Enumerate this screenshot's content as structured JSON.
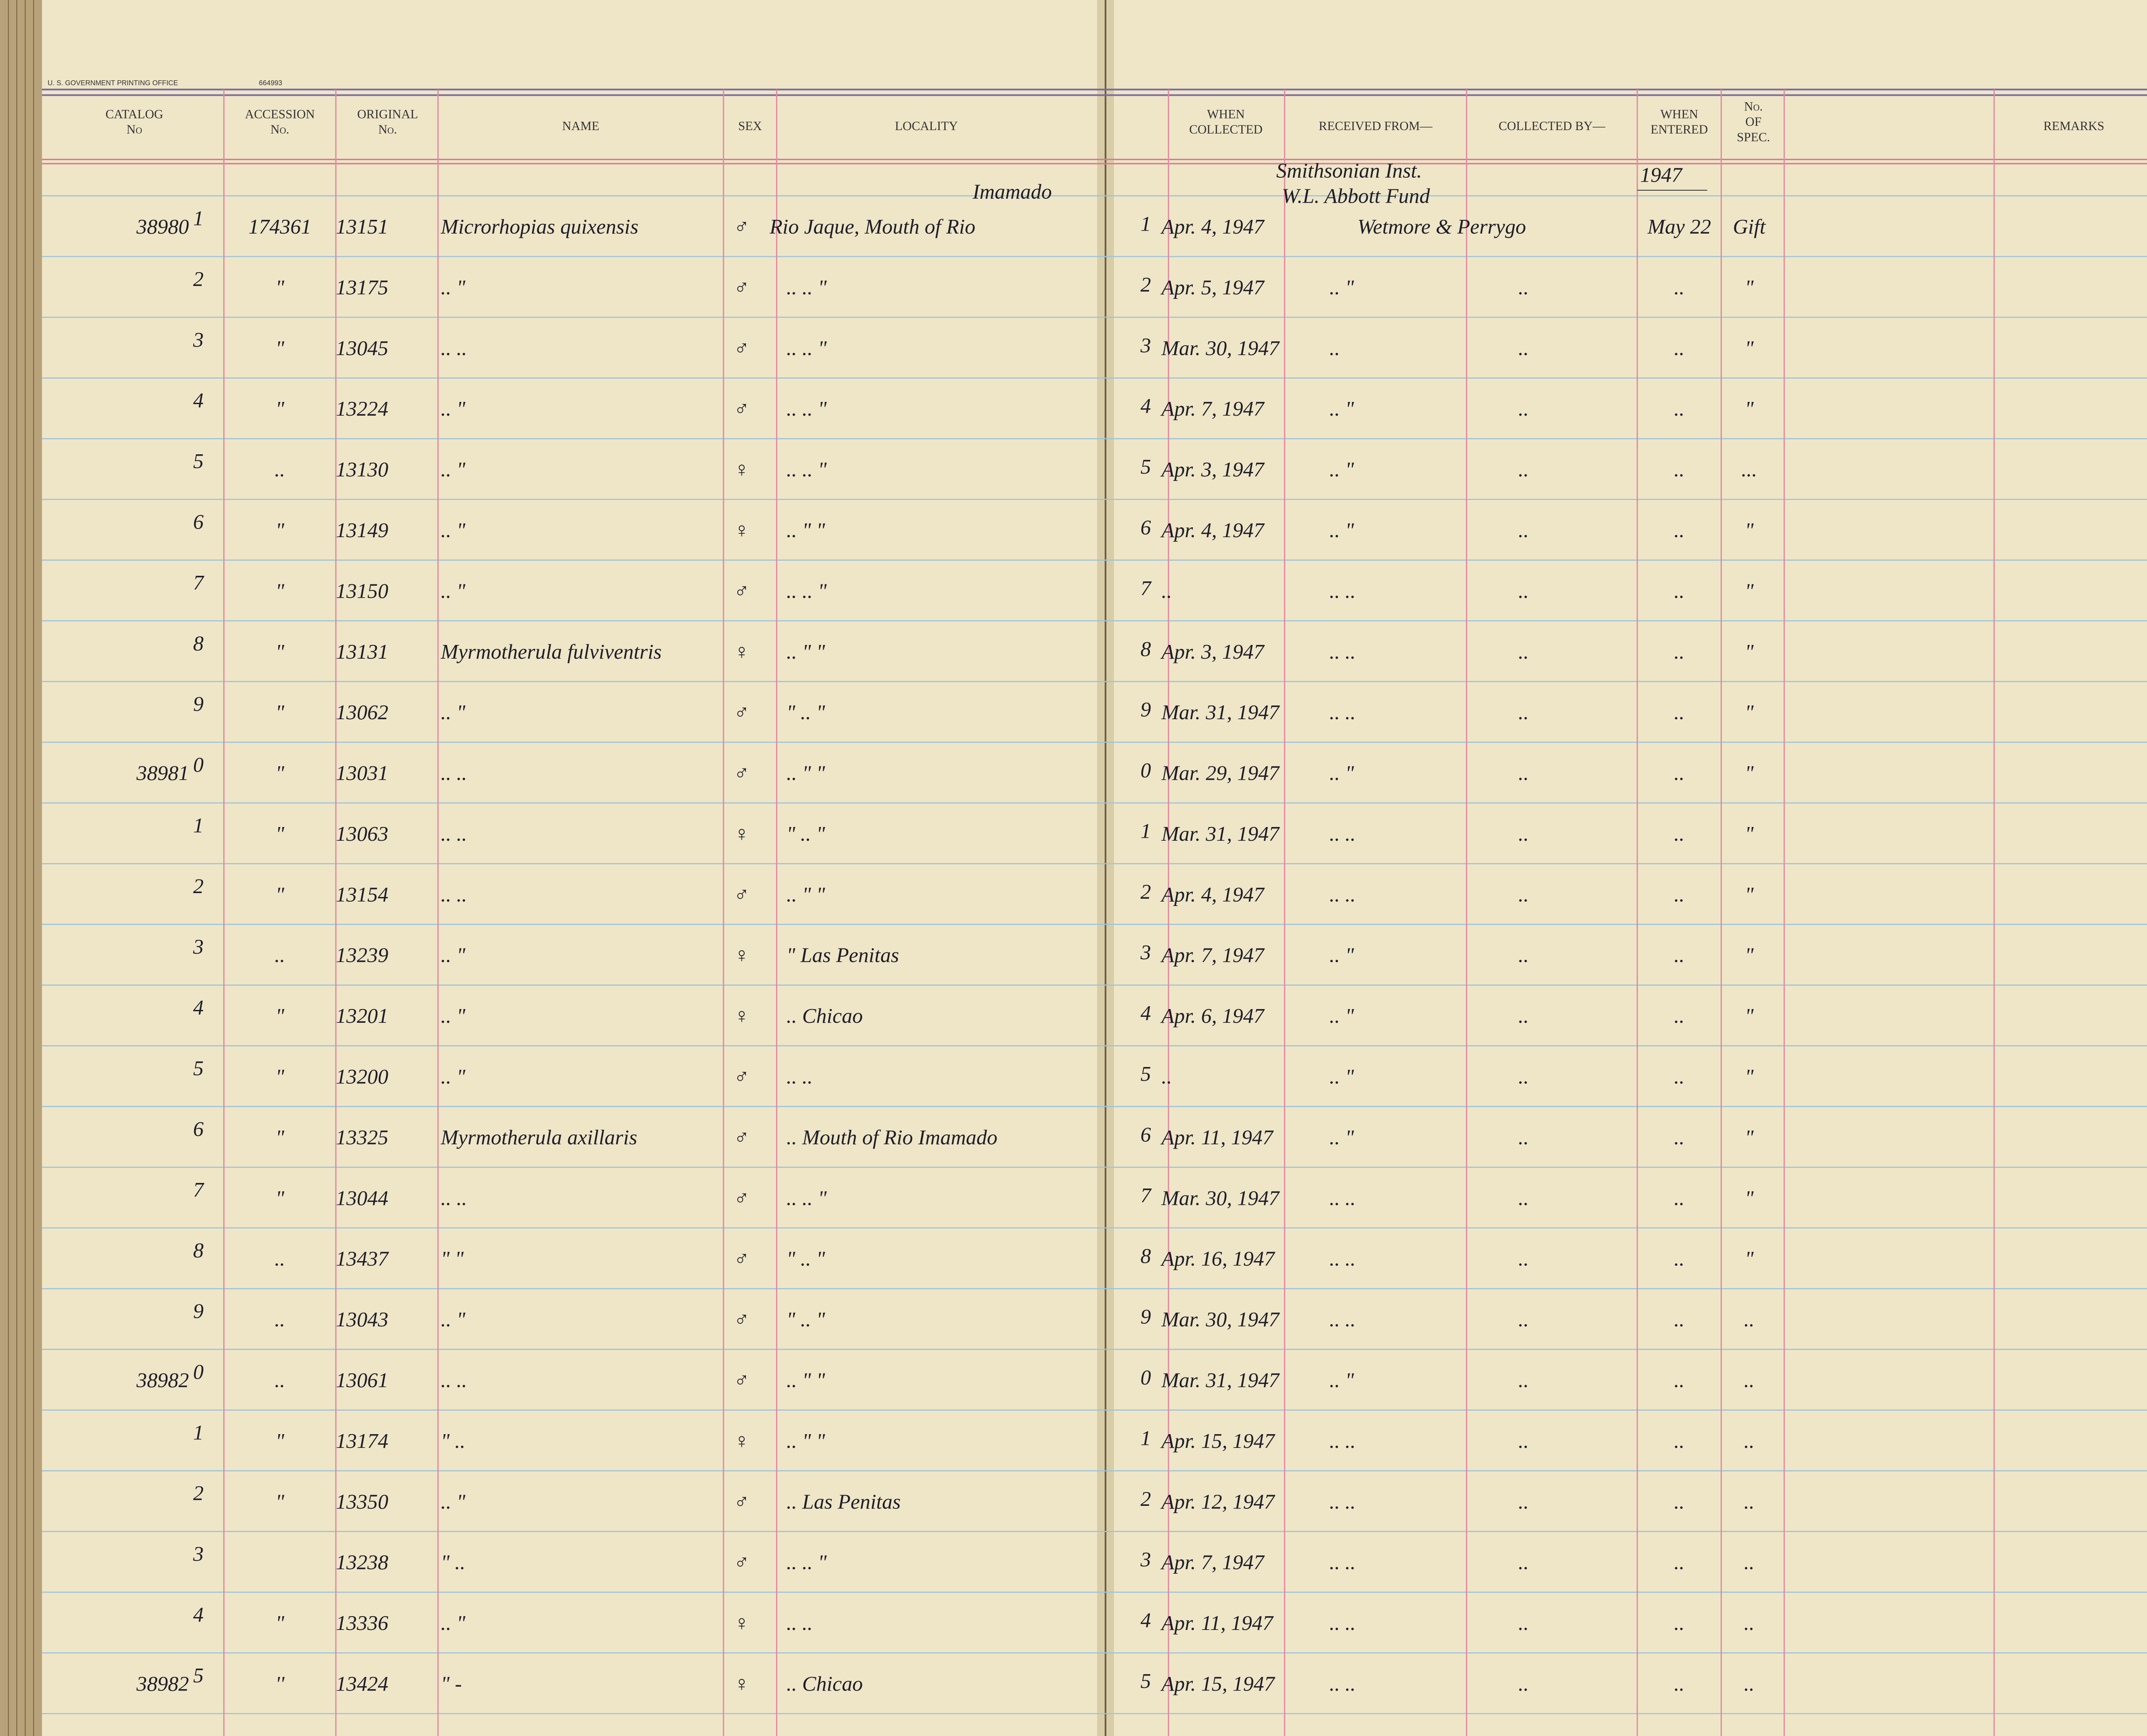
{
  "header": {
    "printer": "U. S. GOVERNMENT PRINTING OFFICE",
    "printer_no": "664993",
    "columns": {
      "catalog": [
        "CATALOG",
        "No"
      ],
      "accession": [
        "ACCESSION",
        "No."
      ],
      "original": [
        "ORIGINAL",
        "No."
      ],
      "name": "NAME",
      "sex": "SEX",
      "locality": "LOCALITY",
      "collected": [
        "WHEN",
        "COLLECTED"
      ],
      "received": "RECEIVED FROM—",
      "collected_by": "COLLECTED BY—",
      "entered": [
        "WHEN",
        "ENTERED"
      ],
      "spec": [
        "No.",
        "OF",
        "SPEC."
      ],
      "remarks": "REMARKS"
    }
  },
  "notes": {
    "locality": "Imamado",
    "received": [
      "Smithsonian Inst.",
      "W.L. Abbott Fund"
    ],
    "entered": "1947"
  },
  "rows": [
    {
      "line": "1",
      "catalog": "38980",
      "accession": "174361",
      "original": "13151",
      "name": "Microrhopias quixensis",
      "sex": "♂",
      "locality": "Rio Jaque, Mouth of Rio",
      "collected": "Apr. 4, 1947",
      "received": "Wetmore & Perrygo",
      "entered": "May 22",
      "spec": "Gift"
    },
    {
      "line": "2",
      "accession": "\"",
      "original": "13175",
      "name": "..      \"",
      "sex": "♂",
      "locality": "..     ..     \"",
      "collected": "Apr. 5, 1947",
      "received": "..  \"",
      "collected_by": "..",
      "entered": "..",
      "spec": "\""
    },
    {
      "line": "3",
      "accession": "\"",
      "original": "13045",
      "name": "..      ..",
      "sex": "♂",
      "locality": "..     ..     \"",
      "collected": "Mar. 30, 1947",
      "received": "..",
      "collected_by": "..",
      "entered": "..",
      "spec": "\""
    },
    {
      "line": "4",
      "accession": "\"",
      "original": "13224",
      "name": "..      \"",
      "sex": "♂",
      "locality": "..     ..     \"",
      "collected": "Apr. 7, 1947",
      "received": "..  \"",
      "collected_by": "..",
      "entered": "..",
      "spec": "\""
    },
    {
      "line": "5",
      "accession": "..",
      "original": "13130",
      "name": "..      \"",
      "sex": "♀",
      "locality": "..     ..     \"",
      "collected": "Apr. 3, 1947",
      "received": "..  \"",
      "collected_by": "..",
      "entered": "..",
      "spec": "..."
    },
    {
      "line": "6",
      "accession": "\"",
      "original": "13149",
      "name": "..      \"",
      "sex": "♀",
      "locality": "..     \"     \"",
      "collected": "Apr. 4, 1947",
      "received": "..  \"",
      "collected_by": "..",
      "entered": "..",
      "spec": "\""
    },
    {
      "line": "7",
      "accession": "\"",
      "original": "13150",
      "name": "..      \"",
      "sex": "♂",
      "locality": "..     ..     \"",
      "collected": "..",
      "received": "..  ..",
      "collected_by": "..",
      "entered": "..",
      "spec": "\""
    },
    {
      "line": "8",
      "accession": "\"",
      "original": "13131",
      "name": "Myrmotherula fulviventris",
      "sex": "♀",
      "locality": "..     \"     \"",
      "collected": "Apr. 3, 1947",
      "received": "..  ..",
      "collected_by": "..",
      "entered": "..",
      "spec": "\""
    },
    {
      "line": "9",
      "accession": "\"",
      "original": "13062",
      "name": "..      \"",
      "sex": "♂",
      "locality": "\"     ..     \"",
      "collected": "Mar. 31, 1947",
      "received": "..  ..",
      "collected_by": "..",
      "entered": "..",
      "spec": "\""
    },
    {
      "line": "0",
      "catalog": "38981",
      "accession": "\"",
      "original": "13031",
      "name": "..      ..",
      "sex": "♂",
      "locality": "..     \"     \"",
      "collected": "Mar. 29, 1947",
      "received": "..  \"",
      "collected_by": "..",
      "entered": "..",
      "spec": "\""
    },
    {
      "line": "1",
      "accession": "\"",
      "original": "13063",
      "name": "..      ..",
      "sex": "♀",
      "locality": "\"     ..     \"",
      "collected": "Mar. 31, 1947",
      "received": "..  ..",
      "collected_by": "..",
      "entered": "..",
      "spec": "\""
    },
    {
      "line": "2",
      "accession": "\"",
      "original": "13154",
      "name": "..      ..",
      "sex": "♂",
      "locality": "..     \"     \"",
      "collected": "Apr. 4, 1947",
      "received": "..  ..",
      "collected_by": "..",
      "entered": "..",
      "spec": "\""
    },
    {
      "line": "3",
      "accession": "..",
      "original": "13239",
      "name": "..      \"",
      "sex": "♀",
      "locality": "\"  Las Penitas",
      "collected": "Apr. 7, 1947",
      "received": "..  \"",
      "collected_by": "..",
      "entered": "..",
      "spec": "\""
    },
    {
      "line": "4",
      "accession": "\"",
      "original": "13201",
      "name": "..      \"",
      "sex": "♀",
      "locality": "..    Chicao",
      "collected": "Apr. 6, 1947",
      "received": "..  \"",
      "collected_by": "..",
      "entered": "..",
      "spec": "\""
    },
    {
      "line": "5",
      "accession": "\"",
      "original": "13200",
      "name": "..      \"",
      "sex": "♂",
      "locality": "..     ..",
      "collected": "..",
      "received": "..  \"",
      "collected_by": "..",
      "entered": "..",
      "spec": "\""
    },
    {
      "line": "6",
      "accession": "\"",
      "original": "13325",
      "name": "Myrmotherula axillaris",
      "sex": "♂",
      "locality": ".. Mouth of Rio Imamado",
      "collected": "Apr. 11, 1947",
      "received": "..  \"",
      "collected_by": "..",
      "entered": "..",
      "spec": "\""
    },
    {
      "line": "7",
      "accession": "\"",
      "original": "13044",
      "name": "..      ..",
      "sex": "♂",
      "locality": "..     ..     \"",
      "collected": "Mar. 30, 1947",
      "received": "..  ..",
      "collected_by": "..",
      "entered": "..",
      "spec": "\""
    },
    {
      "line": "8",
      "accession": "..",
      "original": "13437",
      "name": "\"      \"",
      "sex": "♂",
      "locality": "\"     ..     \"",
      "collected": "Apr. 16, 1947",
      "received": "..  ..",
      "collected_by": "..",
      "entered": "..",
      "spec": "\""
    },
    {
      "line": "9",
      "accession": "..",
      "original": "13043",
      "name": "..      \"",
      "sex": "♂",
      "locality": "\"     ..     \"",
      "collected": "Mar. 30, 1947",
      "received": "..  ..",
      "collected_by": "..",
      "entered": "..",
      "spec": ".."
    },
    {
      "line": "0",
      "catalog": "38982",
      "accession": "..",
      "original": "13061",
      "name": "..      ..",
      "sex": "♂",
      "locality": "..     \"     \"",
      "collected": "Mar. 31, 1947",
      "received": "..  \"",
      "collected_by": "..",
      "entered": "..",
      "spec": ".."
    },
    {
      "line": "1",
      "accession": "\"",
      "original": "13174",
      "name": "\"      ..",
      "sex": "♀",
      "locality": "..     \"     \"",
      "collected": "Apr. 15, 1947",
      "received": "..  ..",
      "collected_by": "..",
      "entered": "..",
      "spec": ".."
    },
    {
      "line": "2",
      "accession": "\"",
      "original": "13350",
      "name": "..      \"",
      "sex": "♂",
      "locality": "..  Las Penitas",
      "collected": "Apr. 12, 1947",
      "received": "..  ..",
      "collected_by": "..",
      "entered": "..",
      "spec": ".."
    },
    {
      "line": "3",
      "original": "13238",
      "name": "\"      ..",
      "sex": "♂",
      "locality": "..     ..     \"",
      "collected": "Apr. 7, 1947",
      "received": "..  ..",
      "collected_by": "..",
      "entered": "..",
      "spec": ".."
    },
    {
      "line": "4",
      "accession": "\"",
      "original": "13336",
      "name": "..      \"",
      "sex": "♀",
      "locality": "..     ..",
      "collected": "Apr. 11, 1947",
      "received": "..  ..",
      "collected_by": "..",
      "entered": "..",
      "spec": ".."
    },
    {
      "line": "5",
      "catalog": "38982",
      "accession": "''",
      "original": "13424",
      "name": "\"      -",
      "sex": "♀",
      "locality": "..    Chicao",
      "collected": "Apr. 15, 1947",
      "received": "..  ..",
      "collected_by": "..",
      "entered": "..",
      "spec": ".."
    }
  ]
}
